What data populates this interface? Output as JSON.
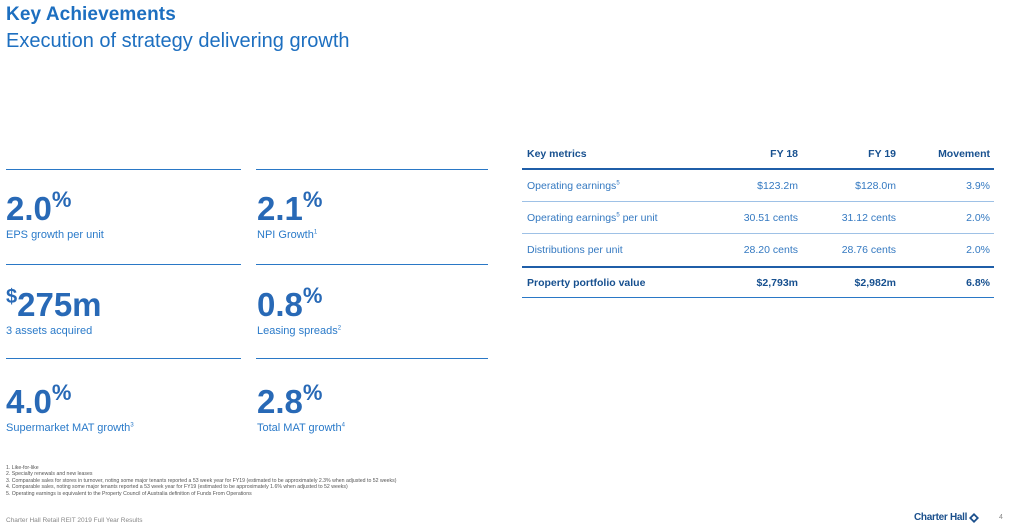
{
  "header": {
    "title": "Key Achievements",
    "subtitle": "Execution of strategy delivering growth"
  },
  "kpis": [
    {
      "value": "2.0",
      "suffix": "%",
      "label": "EPS growth per unit",
      "label_sup": ""
    },
    {
      "value": "2.1",
      "suffix": "%",
      "label": "NPI Growth",
      "label_sup": "1"
    },
    {
      "prefix": "$",
      "value": "275m",
      "label": "3 assets acquired",
      "label_sup": ""
    },
    {
      "value": "0.8",
      "suffix": "%",
      "label": "Leasing spreads",
      "label_sup": "2"
    },
    {
      "value": "4.0",
      "suffix": "%",
      "label": "Supermarket MAT growth",
      "label_sup": "3"
    },
    {
      "value": "2.8",
      "suffix": "%",
      "label": "Total MAT growth",
      "label_sup": "4"
    }
  ],
  "table": {
    "headers": [
      "Key metrics",
      "FY 18",
      "FY 19",
      "Movement"
    ],
    "rows": [
      {
        "metric": "Operating earnings",
        "sup": "5",
        "metric_after": "",
        "fy18": "$123.2m",
        "fy19": "$128.0m",
        "movement": "3.9%"
      },
      {
        "metric": "Operating earnings",
        "sup": "5",
        "metric_after": " per unit",
        "fy18": "30.51 cents",
        "fy19": "31.12 cents",
        "movement": "2.0%"
      },
      {
        "metric": "Distributions per unit",
        "sup": "",
        "metric_after": "",
        "fy18": "28.20 cents",
        "fy19": "28.76 cents",
        "movement": "2.0%"
      },
      {
        "metric": "Property portfolio value",
        "sup": "",
        "metric_after": "",
        "fy18": "$2,793m",
        "fy19": "$2,982m",
        "movement": "6.8%"
      }
    ]
  },
  "footnotes": [
    "1. Like-for-like",
    "2. Specialty renewals and new leases",
    "3. Comparable sales for stores in turnover, noting some major tenants reported a 53 week year for FY19 (estimated to be approximately 2.3% when adjusted to 52 weeks)",
    "4. Comparable sales, noting some major tenants reported a 53 week year for FY19 (estimated to be approximately 1.6% when adjusted to 52 weeks)",
    "5. Operating earnings is equivalent to the Property Council of Australia definition of Funds From Operations"
  ],
  "footer": {
    "left": "Charter Hall Retail REIT 2019 Full Year Results",
    "brand": "Charter Hall",
    "page": "4"
  }
}
